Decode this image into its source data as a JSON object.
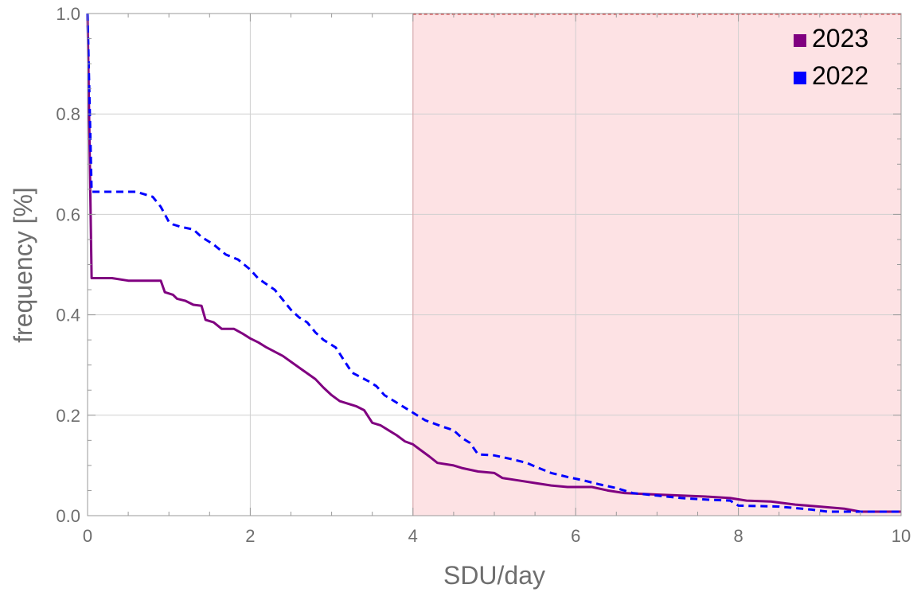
{
  "chart_data": {
    "type": "line",
    "xlabel": "SDU/day",
    "ylabel": "frequency [%]",
    "xlim": [
      0,
      10
    ],
    "ylim": [
      0,
      1
    ],
    "x_ticks": [
      "0",
      "2",
      "4",
      "6",
      "8",
      "10"
    ],
    "y_ticks": [
      "0.0",
      "0.2",
      "0.4",
      "0.6",
      "0.8",
      "1.0"
    ],
    "grid": true,
    "legend_position": "top-right",
    "shaded_region": {
      "x_from": 4,
      "x_to": 10,
      "color": "#fde2e4",
      "edge_color": "#cc3333"
    },
    "series": [
      {
        "name": "2023",
        "color": "#800080",
        "style": "solid",
        "points": [
          [
            0,
            1.0
          ],
          [
            0.05,
            0.473
          ],
          [
            0.3,
            0.473
          ],
          [
            0.5,
            0.468
          ],
          [
            0.9,
            0.468
          ],
          [
            0.95,
            0.445
          ],
          [
            1.05,
            0.44
          ],
          [
            1.1,
            0.432
          ],
          [
            1.2,
            0.428
          ],
          [
            1.3,
            0.42
          ],
          [
            1.4,
            0.418
          ],
          [
            1.45,
            0.39
          ],
          [
            1.55,
            0.385
          ],
          [
            1.65,
            0.372
          ],
          [
            1.8,
            0.372
          ],
          [
            1.9,
            0.363
          ],
          [
            2.0,
            0.353
          ],
          [
            2.1,
            0.345
          ],
          [
            2.2,
            0.335
          ],
          [
            2.4,
            0.318
          ],
          [
            2.6,
            0.295
          ],
          [
            2.8,
            0.272
          ],
          [
            2.9,
            0.255
          ],
          [
            3.0,
            0.24
          ],
          [
            3.1,
            0.228
          ],
          [
            3.3,
            0.218
          ],
          [
            3.4,
            0.21
          ],
          [
            3.5,
            0.185
          ],
          [
            3.6,
            0.18
          ],
          [
            3.7,
            0.17
          ],
          [
            3.8,
            0.16
          ],
          [
            3.9,
            0.148
          ],
          [
            4.0,
            0.142
          ],
          [
            4.1,
            0.13
          ],
          [
            4.2,
            0.118
          ],
          [
            4.3,
            0.105
          ],
          [
            4.5,
            0.1
          ],
          [
            4.6,
            0.095
          ],
          [
            4.8,
            0.088
          ],
          [
            5.0,
            0.085
          ],
          [
            5.1,
            0.075
          ],
          [
            5.3,
            0.07
          ],
          [
            5.5,
            0.065
          ],
          [
            5.7,
            0.06
          ],
          [
            5.9,
            0.057
          ],
          [
            6.2,
            0.057
          ],
          [
            6.4,
            0.05
          ],
          [
            6.6,
            0.045
          ],
          [
            7.0,
            0.042
          ],
          [
            7.3,
            0.04
          ],
          [
            7.6,
            0.038
          ],
          [
            7.9,
            0.035
          ],
          [
            8.1,
            0.03
          ],
          [
            8.4,
            0.028
          ],
          [
            8.7,
            0.022
          ],
          [
            9.0,
            0.018
          ],
          [
            9.3,
            0.014
          ],
          [
            9.5,
            0.008
          ],
          [
            10.0,
            0.008
          ]
        ]
      },
      {
        "name": "2022",
        "color": "#0000ff",
        "style": "dashed",
        "points": [
          [
            0,
            1.0
          ],
          [
            0.05,
            0.645
          ],
          [
            0.3,
            0.645
          ],
          [
            0.6,
            0.645
          ],
          [
            0.8,
            0.635
          ],
          [
            0.9,
            0.615
          ],
          [
            1.0,
            0.585
          ],
          [
            1.05,
            0.58
          ],
          [
            1.15,
            0.575
          ],
          [
            1.3,
            0.57
          ],
          [
            1.4,
            0.555
          ],
          [
            1.55,
            0.54
          ],
          [
            1.7,
            0.52
          ],
          [
            1.85,
            0.51
          ],
          [
            2.0,
            0.49
          ],
          [
            2.1,
            0.472
          ],
          [
            2.3,
            0.45
          ],
          [
            2.4,
            0.43
          ],
          [
            2.5,
            0.41
          ],
          [
            2.6,
            0.395
          ],
          [
            2.7,
            0.385
          ],
          [
            2.8,
            0.365
          ],
          [
            2.9,
            0.35
          ],
          [
            3.05,
            0.335
          ],
          [
            3.15,
            0.31
          ],
          [
            3.25,
            0.285
          ],
          [
            3.45,
            0.268
          ],
          [
            3.55,
            0.258
          ],
          [
            3.65,
            0.24
          ],
          [
            3.8,
            0.225
          ],
          [
            3.9,
            0.215
          ],
          [
            4.0,
            0.205
          ],
          [
            4.15,
            0.19
          ],
          [
            4.35,
            0.178
          ],
          [
            4.5,
            0.17
          ],
          [
            4.6,
            0.155
          ],
          [
            4.7,
            0.145
          ],
          [
            4.8,
            0.122
          ],
          [
            5.0,
            0.12
          ],
          [
            5.2,
            0.113
          ],
          [
            5.4,
            0.105
          ],
          [
            5.5,
            0.098
          ],
          [
            5.7,
            0.085
          ],
          [
            5.9,
            0.077
          ],
          [
            6.1,
            0.07
          ],
          [
            6.3,
            0.062
          ],
          [
            6.5,
            0.055
          ],
          [
            6.7,
            0.045
          ],
          [
            7.0,
            0.04
          ],
          [
            7.3,
            0.035
          ],
          [
            7.6,
            0.032
          ],
          [
            7.9,
            0.03
          ],
          [
            8.0,
            0.02
          ],
          [
            8.5,
            0.018
          ],
          [
            8.9,
            0.012
          ],
          [
            9.1,
            0.008
          ],
          [
            10.0,
            0.008
          ]
        ]
      }
    ]
  }
}
